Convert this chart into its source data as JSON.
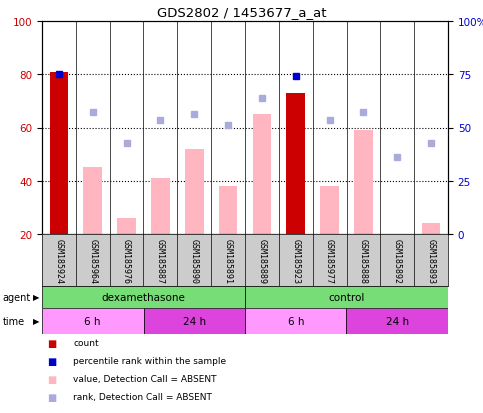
{
  "title": "GDS2802 / 1453677_a_at",
  "samples": [
    "GSM185924",
    "GSM185964",
    "GSM185976",
    "GSM185887",
    "GSM185890",
    "GSM185891",
    "GSM185889",
    "GSM185923",
    "GSM185977",
    "GSM185888",
    "GSM185892",
    "GSM185893"
  ],
  "count_values": [
    81,
    0,
    0,
    0,
    0,
    0,
    0,
    73,
    0,
    0,
    0,
    0
  ],
  "value_absent": [
    0,
    45,
    26,
    41,
    52,
    38,
    65,
    0,
    38,
    59,
    20,
    24
  ],
  "rank_absent": [
    0,
    66,
    54,
    63,
    65,
    61,
    71,
    0,
    63,
    66,
    49,
    54
  ],
  "percentile_rank": [
    75,
    0,
    0,
    0,
    0,
    0,
    0,
    74,
    0,
    0,
    0,
    0
  ],
  "ylim_left": [
    20,
    100
  ],
  "ylim_right": [
    0,
    100
  ],
  "left_ticks": [
    20,
    40,
    60,
    80,
    100
  ],
  "right_ticks": [
    0,
    25,
    50,
    75,
    100
  ],
  "right_tick_labels": [
    "0",
    "25",
    "50",
    "75",
    "100%"
  ],
  "count_color": "#CC0000",
  "value_absent_color": "#FFB6C1",
  "rank_absent_color": "#AAAADD",
  "percentile_rank_color": "#0000CC",
  "bg_color": "#FFFFFF",
  "label_bg_color": "#CCCCCC",
  "agent_color": "#77DD77",
  "time_color_light": "#FF99FF",
  "time_color_dark": "#DD44DD",
  "bar_width": 0.55
}
